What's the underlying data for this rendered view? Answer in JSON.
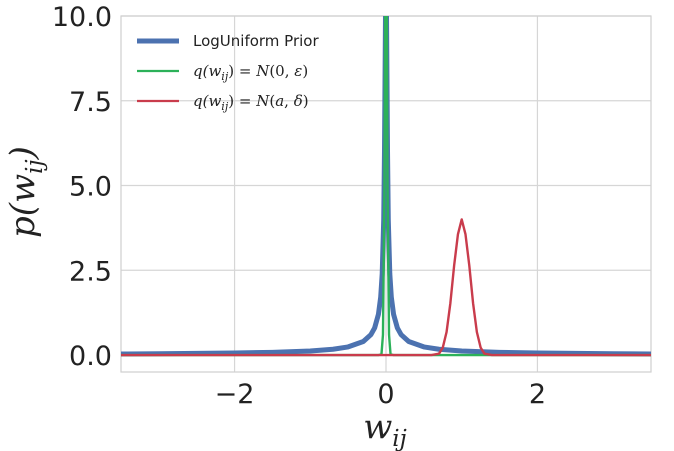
{
  "chart_data": {
    "type": "line",
    "xlabel": "w_ij",
    "ylabel": "p(w_ij)",
    "xlim": [
      -3.5,
      3.5
    ],
    "ylim": [
      -0.5,
      10.0
    ],
    "xticks": [
      -2,
      0,
      2
    ],
    "xtick_labels": [
      "−2",
      "0",
      "2"
    ],
    "yticks": [
      0.0,
      2.5,
      5.0,
      7.5,
      10.0
    ],
    "ytick_labels": [
      "0.0",
      "2.5",
      "5.0",
      "7.5",
      "10.0"
    ],
    "grid": true,
    "legend_position": "top-left",
    "series": [
      {
        "name": "LogUniform Prior",
        "color": "#4C72B0",
        "x": [
          -3.5,
          -3,
          -2.5,
          -2,
          -1.5,
          -1,
          -0.7,
          -0.5,
          -0.3,
          -0.2,
          -0.15,
          -0.1,
          -0.07,
          -0.05,
          -0.03,
          -0.02,
          0,
          0.02,
          0.03,
          0.05,
          0.07,
          0.1,
          0.15,
          0.2,
          0.3,
          0.5,
          0.7,
          1,
          1.5,
          2,
          2.5,
          3,
          3.5
        ],
        "y": [
          0.03,
          0.04,
          0.05,
          0.06,
          0.08,
          0.12,
          0.17,
          0.24,
          0.4,
          0.6,
          0.8,
          1.2,
          1.71,
          2.4,
          4.0,
          6.0,
          12.0,
          6.0,
          4.0,
          2.4,
          1.71,
          1.2,
          0.8,
          0.6,
          0.4,
          0.24,
          0.17,
          0.12,
          0.08,
          0.06,
          0.05,
          0.04,
          0.03
        ]
      },
      {
        "name": "q(w_ij) = N(0, ε)",
        "color": "#2CB159",
        "x": [
          -3.5,
          -0.1,
          -0.06,
          -0.04,
          -0.02,
          -0.01,
          0,
          0.01,
          0.02,
          0.04,
          0.06,
          0.1,
          3.5
        ],
        "y": [
          0,
          0,
          0.02,
          0.6,
          5.0,
          10.5,
          14.0,
          10.5,
          5.0,
          0.6,
          0.02,
          0,
          0
        ]
      },
      {
        "name": "q(w_ij) = N(a, δ)",
        "color": "#C93C4C",
        "x": [
          -3.5,
          0.6,
          0.7,
          0.75,
          0.8,
          0.85,
          0.9,
          0.95,
          1.0,
          1.05,
          1.1,
          1.15,
          1.2,
          1.25,
          1.3,
          1.4,
          3.5
        ],
        "y": [
          0,
          0,
          0.04,
          0.22,
          0.68,
          1.53,
          2.64,
          3.56,
          4.0,
          3.56,
          2.64,
          1.53,
          0.68,
          0.22,
          0.04,
          0,
          0
        ]
      }
    ]
  }
}
